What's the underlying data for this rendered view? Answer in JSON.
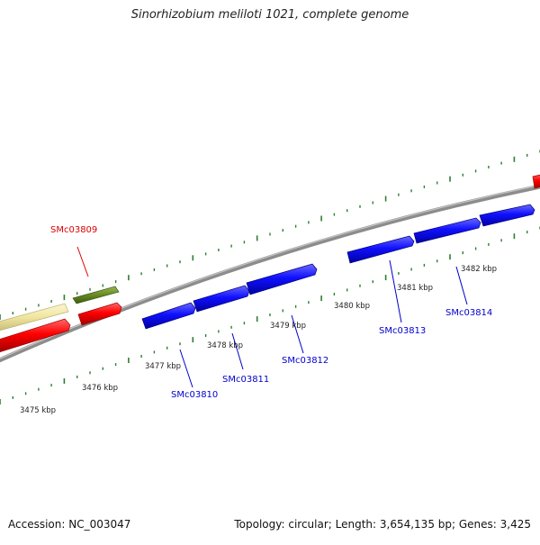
{
  "title": "Sinorhizobium meliloti 1021, complete genome",
  "footer": {
    "accession": "Accession: NC_003047",
    "summary": "Topology: circular; Length: 3,654,135 bp; Genes: 3,425"
  },
  "colors": {
    "backbone": "#8c8c8c",
    "tick": "#2e7d32",
    "forward_gene": "#1010ff",
    "highlight_gene": "#ff0000",
    "olive_gene": "#6b8e23",
    "pale_gene": "#f0e6a0",
    "label_blue": "#0000cc",
    "label_red": "#dd0000"
  },
  "scale_labels": [
    "3475 kbp",
    "3476 kbp",
    "3477 kbp",
    "3478 kbp",
    "3479 kbp",
    "3480 kbp",
    "3481 kbp",
    "3482 kbp"
  ],
  "genes": [
    {
      "id": "SMc03809",
      "color": "label_red"
    },
    {
      "id": "SMc03810",
      "color": "label_blue"
    },
    {
      "id": "SMc03811",
      "color": "label_blue"
    },
    {
      "id": "SMc03812",
      "color": "label_blue"
    },
    {
      "id": "SMc03813",
      "color": "label_blue"
    },
    {
      "id": "SMc03814",
      "color": "label_blue"
    }
  ]
}
